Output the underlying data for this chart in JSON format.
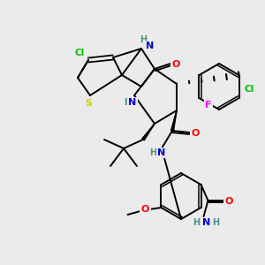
{
  "bg_color": "#ebebeb",
  "atom_colors": {
    "C": "#000000",
    "N": "#0000cc",
    "O": "#ff0000",
    "S": "#cccc00",
    "F": "#ff00ff",
    "Cl": "#00bb00",
    "H": "#4a9090"
  },
  "figsize": [
    3.0,
    3.0
  ],
  "dpi": 100,
  "lw": 1.4,
  "fs": 7.5
}
